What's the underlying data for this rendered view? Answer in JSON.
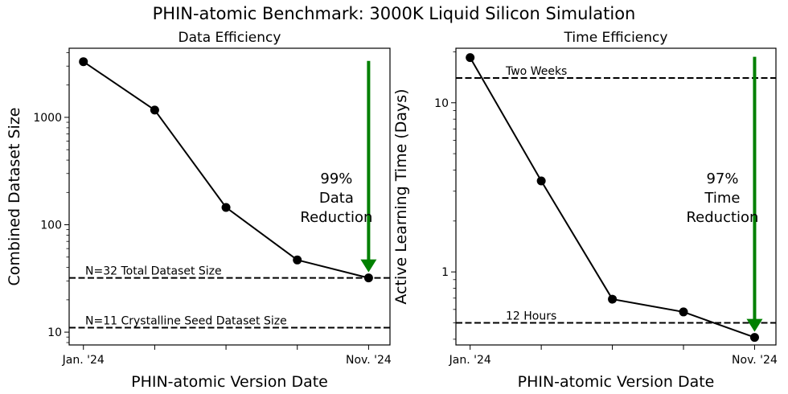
{
  "suptitle": "PHIN-atomic Benchmark: 3000K Liquid Silicon Simulation",
  "chart_data": [
    {
      "type": "line",
      "title": "Data Efficiency",
      "xlabel": "PHIN-atomic Version Date",
      "ylabel": "Combined Dataset Size",
      "yscale": "log",
      "ylim": [
        7.6,
        4400
      ],
      "yticks": [
        10,
        100,
        1000
      ],
      "ytick_labels": [
        "10",
        "100",
        "1000"
      ],
      "xtick_labels": [
        "Jan. '24",
        "",
        "",
        "",
        "Nov. '24"
      ],
      "grid": false,
      "series": [
        {
          "values": [
            3300,
            1170,
            145,
            47,
            32
          ],
          "color": "#000000"
        }
      ],
      "hlines": [
        {
          "y": 32,
          "label": "N=32 Total Dataset Size"
        },
        {
          "y": 11,
          "label": "N=11 Crystalline Seed Dataset Size"
        }
      ],
      "annotation": {
        "text": [
          "99%",
          "Data",
          "Reduction"
        ],
        "arrow_from": 3300,
        "arrow_to": 32,
        "color": "#008000"
      }
    },
    {
      "type": "line",
      "title": "Time Efficiency",
      "xlabel": "PHIN-atomic Version Date",
      "ylabel": "Active Learning Time (Days)",
      "yscale": "log",
      "ylim": [
        0.37,
        21
      ],
      "yticks": [
        1,
        10
      ],
      "ytick_labels": [
        "1",
        "10"
      ],
      "xtick_labels": [
        "Jan. '24",
        "",
        "",
        "",
        "Nov. '24"
      ],
      "grid": false,
      "series": [
        {
          "values": [
            18.5,
            3.45,
            0.69,
            0.58,
            0.41
          ],
          "color": "#000000"
        }
      ],
      "hlines": [
        {
          "y": 14,
          "label": "Two Weeks"
        },
        {
          "y": 0.5,
          "label": "12 Hours"
        }
      ],
      "annotation": {
        "text": [
          "97%",
          "Time",
          "Reduction"
        ],
        "arrow_from": 18.5,
        "arrow_to": 0.41,
        "color": "#008000"
      }
    }
  ]
}
